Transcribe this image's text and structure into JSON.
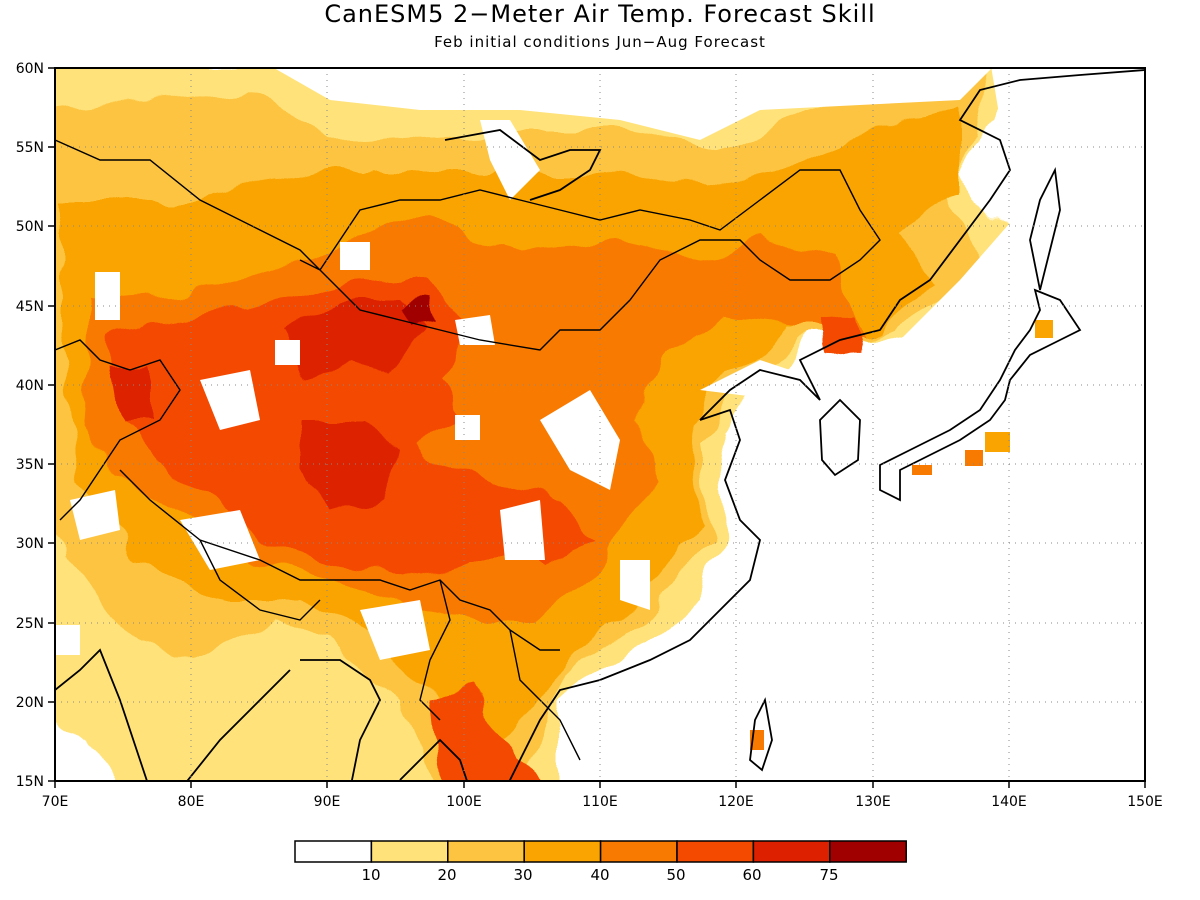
{
  "title": "CanESM5 2−Meter Air Temp. Forecast Skill",
  "subtitle": "Feb initial conditions  Jun−Aug Forecast",
  "map": {
    "lon_range": [
      70,
      150
    ],
    "lat_range": [
      15,
      60
    ],
    "lon_ticks": [
      "70E",
      "80E",
      "90E",
      "100E",
      "110E",
      "120E",
      "130E",
      "140E",
      "150E"
    ],
    "lat_ticks": [
      "15N",
      "20N",
      "25N",
      "30N",
      "35N",
      "40N",
      "45N",
      "50N",
      "55N",
      "60N"
    ],
    "grid": "dotted"
  },
  "colorbar": {
    "colors": [
      "#ffffff",
      "#ffe27a",
      "#fcc440",
      "#f9a400",
      "#f97a00",
      "#f44a00",
      "#dd2000",
      "#a00000"
    ],
    "labels": [
      "10",
      "20",
      "30",
      "40",
      "50",
      "60",
      "75"
    ]
  }
}
